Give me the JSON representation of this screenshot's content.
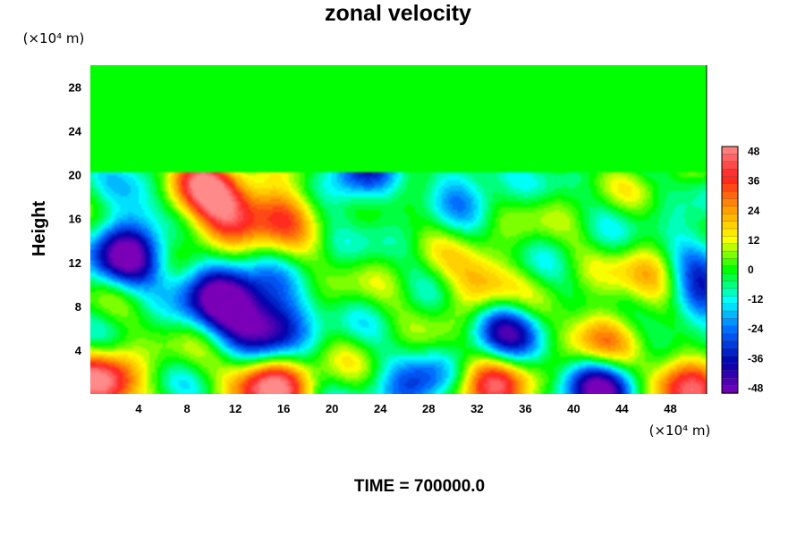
{
  "chart_data": {
    "type": "heatmap",
    "title": "zonal velocity",
    "ylabel": "Height",
    "xlabel": "",
    "y_unit": "(×10⁴ m)",
    "x_unit": "(×10⁴ m)",
    "xlim": [
      0,
      51
    ],
    "ylim": [
      0,
      30
    ],
    "x_ticks": [
      "4",
      "8",
      "12",
      "16",
      "20",
      "24",
      "28",
      "32",
      "36",
      "40",
      "44",
      "48"
    ],
    "y_ticks": [
      "4",
      "8",
      "12",
      "16",
      "20",
      "24",
      "28"
    ],
    "colorbar": {
      "range": [
        -50,
        50
      ],
      "ticks": [
        "48",
        "36",
        "24",
        "12",
        "0",
        "-12",
        "-24",
        "-36",
        "-48"
      ],
      "colors_top_to_bottom": [
        "#ff8a8a",
        "#ff2020",
        "#ff9900",
        "#ffff00",
        "#00ff00",
        "#00ffff",
        "#0066ff",
        "#0000aa",
        "#7a00b8"
      ]
    },
    "time_label": "TIME = 700000.0",
    "features": [
      {
        "x": 1,
        "y": 1,
        "value": 45
      },
      {
        "x": 15,
        "y": 1,
        "value": 50
      },
      {
        "x": 49.5,
        "y": 1,
        "value": 40
      },
      {
        "x": 33,
        "y": 0.5,
        "value": 40
      },
      {
        "x": 27,
        "y": 0.3,
        "value": -30
      },
      {
        "x": 42,
        "y": 0.5,
        "value": -45
      },
      {
        "x": 9,
        "y": 19.2,
        "value": 35
      },
      {
        "x": 11,
        "y": 16,
        "value": 40
      },
      {
        "x": 16,
        "y": 17,
        "value": 30
      },
      {
        "x": 3,
        "y": 12.5,
        "value": -45
      },
      {
        "x": 15,
        "y": 6,
        "value": -48
      },
      {
        "x": 12,
        "y": 8,
        "value": -38
      },
      {
        "x": 10,
        "y": 10,
        "value": -30
      },
      {
        "x": 34,
        "y": 6,
        "value": -42
      },
      {
        "x": 42,
        "y": 5,
        "value": 25
      },
      {
        "x": 32.5,
        "y": 9.5,
        "value": 30
      },
      {
        "x": 47,
        "y": 10.5,
        "value": 25
      },
      {
        "x": 50,
        "y": 8,
        "value": -30
      },
      {
        "x": 50,
        "y": 13,
        "value": -25
      },
      {
        "x": 22,
        "y": 19.5,
        "value": -30
      },
      {
        "x": 31,
        "y": 19.5,
        "value": -20
      },
      {
        "x": 4,
        "y": 17,
        "value": -18
      }
    ]
  }
}
